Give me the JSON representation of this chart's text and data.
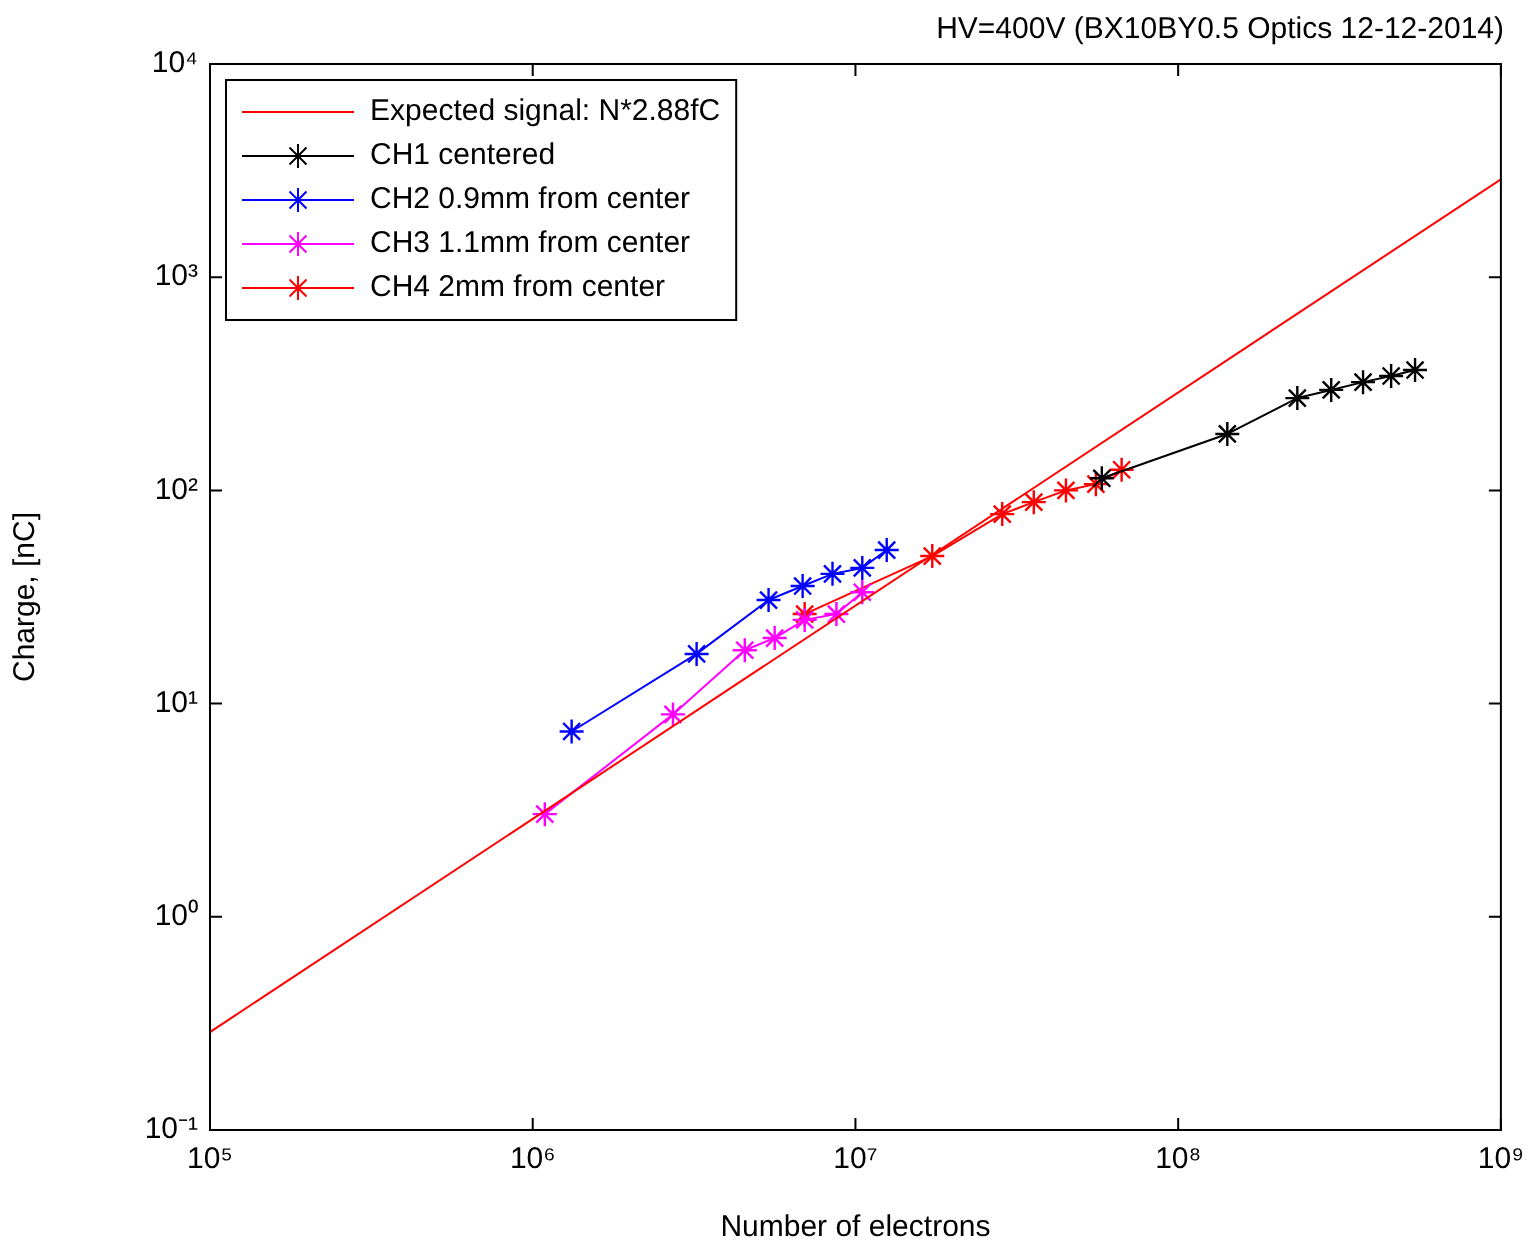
{
  "chart_data": {
    "type": "line",
    "title": "HV=400V (BX10BY0.5 Optics 12-12-2014)",
    "xlabel": "Number of electrons",
    "ylabel": "Charge, [nC]",
    "log": "xy",
    "grid": false,
    "legend": "top left",
    "marker": "cross",
    "line_style": "solid",
    "xlim": [
      100000,
      1000000000
    ],
    "xticks": [
      {
        "value": 100000,
        "label": "10⁵"
      },
      {
        "value": 1000000,
        "label": "10⁶"
      },
      {
        "value": 10000000,
        "label": "10⁷"
      },
      {
        "value": 100000000,
        "label": "10⁸"
      },
      {
        "value": 1000000000,
        "label": "10⁹"
      }
    ],
    "ylim": [
      0.1,
      10000
    ],
    "yticks": [
      {
        "value": 0.1,
        "label": "10⁻¹"
      },
      {
        "value": 1,
        "label": "10⁰"
      },
      {
        "value": 10,
        "label": "10¹"
      },
      {
        "value": 100,
        "label": "10²"
      },
      {
        "value": 1000,
        "label": "10³"
      },
      {
        "value": 10000,
        "label": "10⁴"
      }
    ],
    "series": [
      {
        "name": "Expected signal: N*2.88fC",
        "color": "#ff0000",
        "marker": "none",
        "x": [
          100000,
          1000000000
        ],
        "values": [
          0.288,
          2880
        ]
      },
      {
        "name": "CH1 centered",
        "color": "#000000",
        "x": [
          58000000,
          142000000,
          234000000,
          298000000,
          374000000,
          457000000,
          542000000
        ],
        "values": [
          114,
          184,
          271,
          296,
          322,
          344,
          367
        ]
      },
      {
        "name": "CH2 0.9mm from center",
        "color": "#0000ff",
        "x": [
          1320000,
          3220000,
          5380000,
          6860000,
          8490000,
          10500000,
          12500000
        ],
        "values": [
          7.4,
          17.1,
          30.6,
          35.6,
          40.6,
          43.3,
          52.5
        ]
      },
      {
        "name": "CH3 1.1mm from center",
        "color": "#ff00ff",
        "x": [
          1090000,
          2720000,
          4540000,
          5620000,
          6960000,
          8730000,
          10500000
        ],
        "values": [
          3.03,
          8.9,
          17.8,
          20.3,
          24.7,
          26.3,
          33.3
        ]
      },
      {
        "name": "CH4 2mm from center",
        "color": "#ff0000",
        "x": [
          6960000,
          17300000,
          28500000,
          35700000,
          44900000,
          55600000,
          66800000
        ],
        "values": [
          26.3,
          49.2,
          77.4,
          88.1,
          100,
          107,
          125
        ]
      }
    ]
  }
}
